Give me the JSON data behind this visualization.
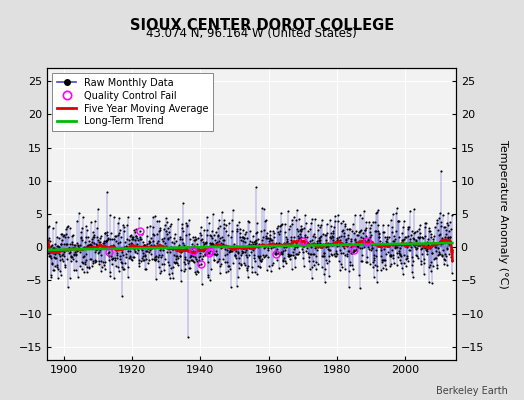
{
  "title": "SIOUX CENTER DOROT COLLEGE",
  "subtitle": "43.074 N, 96.164 W (United States)",
  "attribution": "Berkeley Earth",
  "ylabel": "Temperature Anomaly (°C)",
  "ylim": [
    -17,
    27
  ],
  "yticks": [
    -15,
    -10,
    -5,
    0,
    5,
    10,
    15,
    20,
    25
  ],
  "xlim": [
    1895,
    2015
  ],
  "xticks": [
    1900,
    1920,
    1940,
    1960,
    1980,
    2000
  ],
  "year_start": 1895,
  "year_end": 2014,
  "seed": 42,
  "bg_color": "#e0e0e0",
  "plot_bg_color": "#f2f2f2",
  "stem_color": "#4444cc",
  "dot_color": "#000000",
  "ma_color": "#dd0000",
  "trend_color": "#00bb00",
  "qc_color": "#ff00ff",
  "legend_entries": [
    "Raw Monthly Data",
    "Quality Control Fail",
    "Five Year Moving Average",
    "Long-Term Trend"
  ],
  "n_qc": 10
}
